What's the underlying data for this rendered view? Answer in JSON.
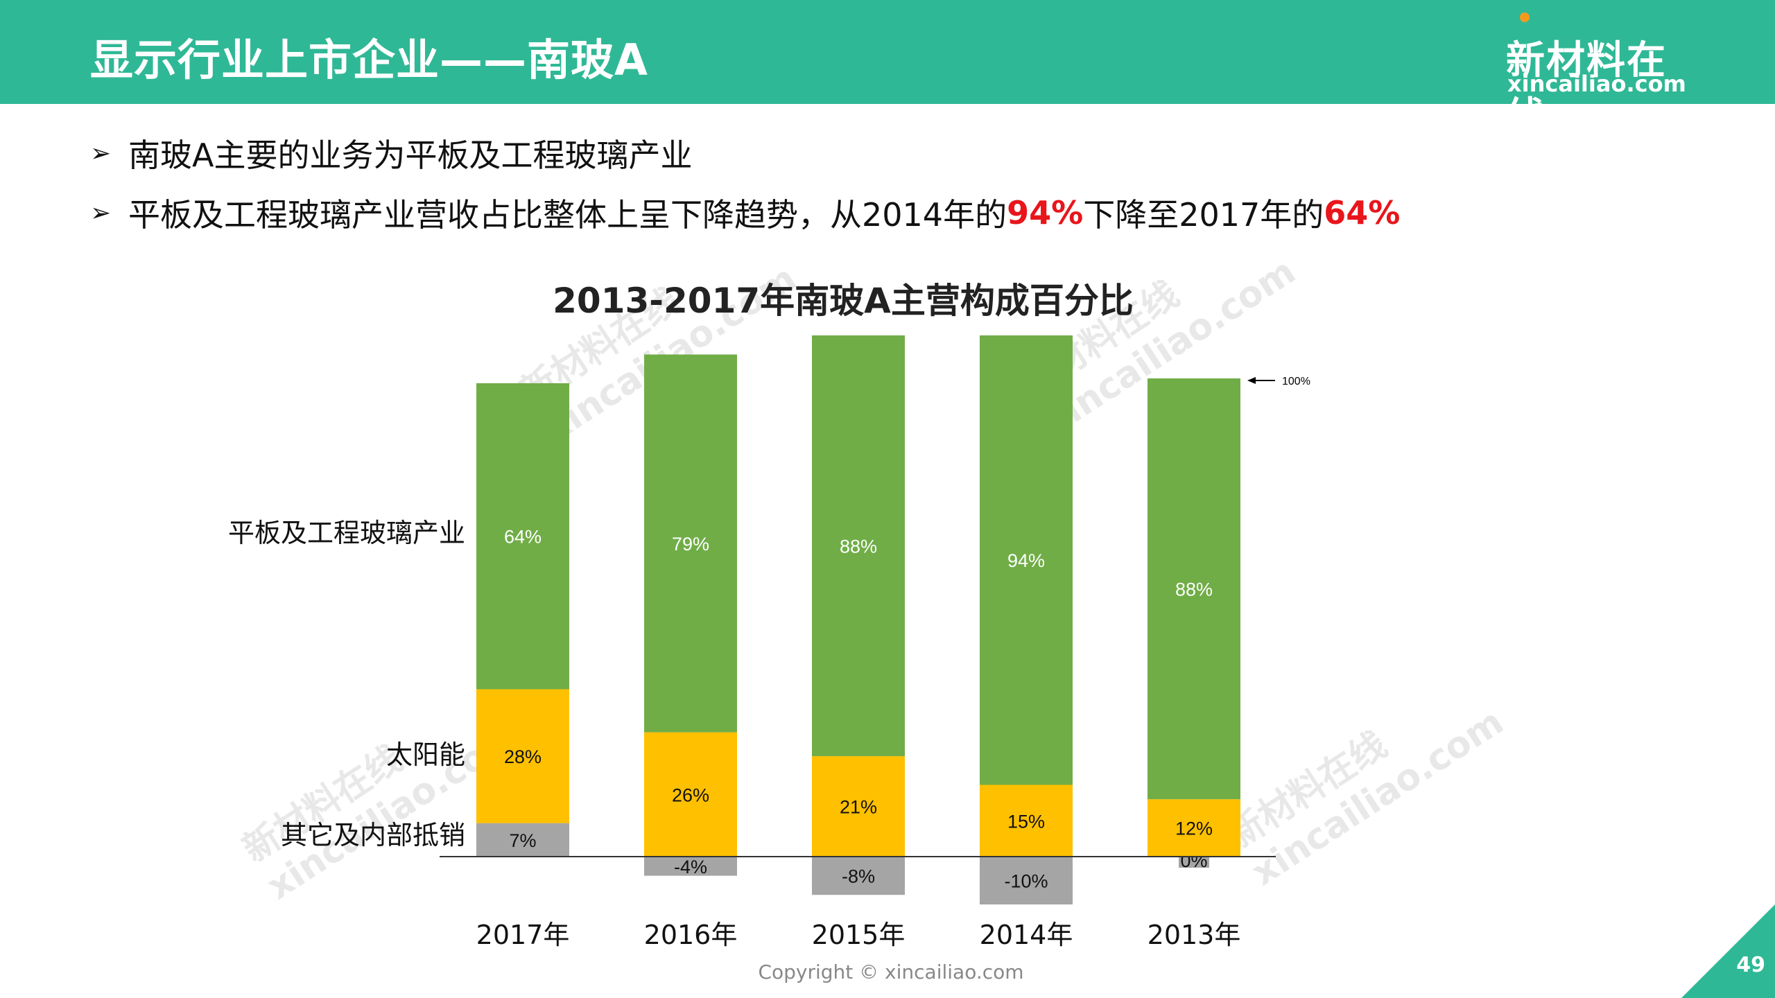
{
  "header": {
    "title": "显示行业上市企业——南玻A"
  },
  "logo": {
    "cn": "新材料在线",
    "en": "xincailiao.com"
  },
  "bullets": [
    {
      "parts": [
        "南玻A主要的业务为平板及工程玻璃产业"
      ]
    },
    {
      "prefix": "平板及工程玻璃产业营收占比整体上呈下降趋势，从2014年的",
      "hl1": "94%",
      "mid": "下降至2017年的",
      "hl2": "64%"
    }
  ],
  "watermark": "新材料在线\nxincailiao.com",
  "chart_data": {
    "type": "bar",
    "stacked": true,
    "title": "2013-2017年南玻A主营构成百分比",
    "categories": [
      "2017年",
      "2016年",
      "2015年",
      "2014年",
      "2013年"
    ],
    "series": [
      {
        "name": "其它及内部抵销",
        "values": [
          7,
          -4,
          -8,
          -10,
          0
        ],
        "color": "#a5a5a5"
      },
      {
        "name": "太阳能",
        "values": [
          28,
          26,
          21,
          15,
          12
        ],
        "color": "#ffc000"
      },
      {
        "name": "平板及工程玻璃产业",
        "values": [
          64,
          79,
          88,
          94,
          88
        ],
        "color": "#70ad47"
      }
    ],
    "labels": [
      [
        "7%",
        "-4%",
        "-8%",
        "-10%",
        "0%"
      ],
      [
        "28%",
        "26%",
        "21%",
        "15%",
        "12%"
      ],
      [
        "64%",
        "79%",
        "88%",
        "94%",
        "88%"
      ]
    ],
    "annotation": "100%",
    "ylim": [
      -10,
      110
    ]
  },
  "copyright": "Copyright © xincailiao.com",
  "page_number": "49"
}
